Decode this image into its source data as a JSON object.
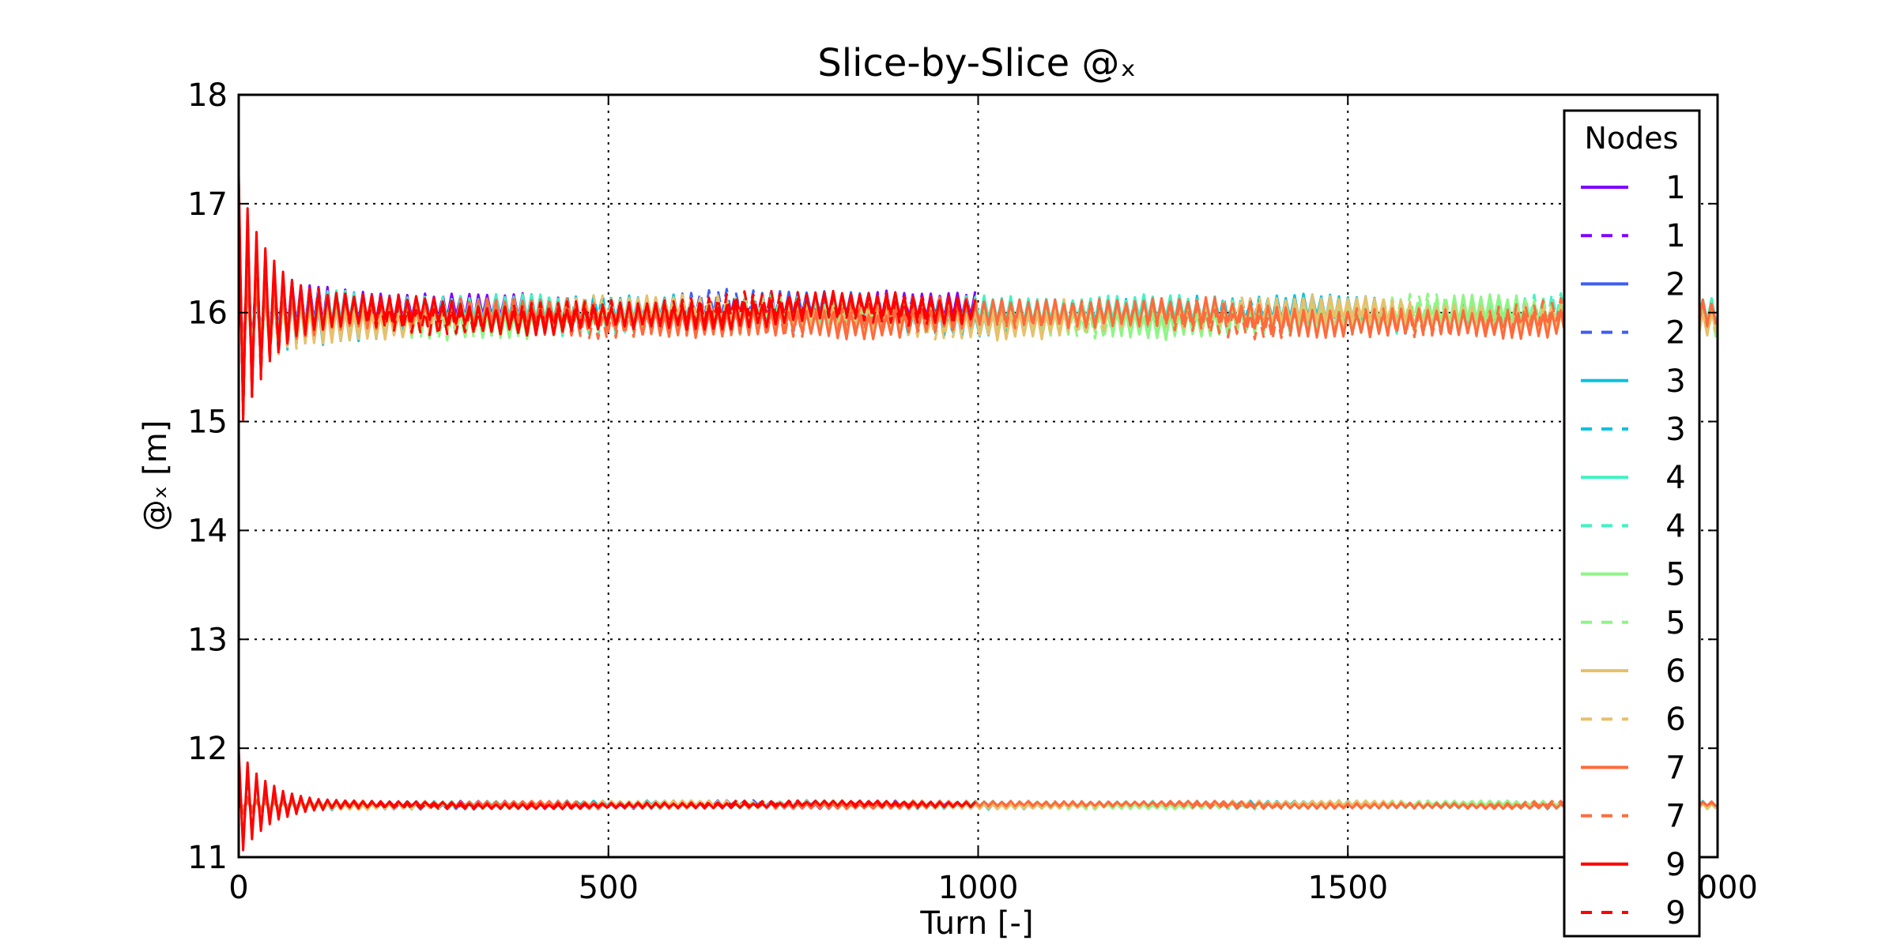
{
  "chart_data": {
    "type": "line",
    "title": "Slice-by-Slice @ₓ",
    "xlabel": "Turn [-]",
    "ylabel": "@ₓ [m]",
    "xlim": [
      0,
      2000
    ],
    "ylim": [
      11,
      18
    ],
    "xticks": [
      "0",
      "500",
      "1000",
      "1500",
      "2000"
    ],
    "yticks": [
      "11",
      "12",
      "13",
      "14",
      "15",
      "16",
      "17",
      "18"
    ],
    "grid": true,
    "legend": {
      "title": "Nodes",
      "placement": "right"
    },
    "series": [
      {
        "name": "1",
        "style": "solid",
        "color": "#7f00ff",
        "turn_range": [
          0,
          1000
        ],
        "upper_mean": 16.0,
        "lower_mean": 11.48
      },
      {
        "name": "1",
        "style": "dashed",
        "color": "#7f00ff",
        "turn_range": [
          0,
          1000
        ],
        "upper_mean": 16.0,
        "lower_mean": 11.48
      },
      {
        "name": "2",
        "style": "solid",
        "color": "#3f5ef3",
        "turn_range": [
          0,
          1000
        ],
        "upper_mean": 16.0,
        "lower_mean": 11.48
      },
      {
        "name": "2",
        "style": "dashed",
        "color": "#3f5ef3",
        "turn_range": [
          0,
          1000
        ],
        "upper_mean": 16.0,
        "lower_mean": 11.48
      },
      {
        "name": "3",
        "style": "solid",
        "color": "#00c3e0",
        "turn_range": [
          0,
          2000
        ],
        "upper_mean": 15.97,
        "lower_mean": 11.48
      },
      {
        "name": "3",
        "style": "dashed",
        "color": "#00c3e0",
        "turn_range": [
          0,
          2000
        ],
        "upper_mean": 15.97,
        "lower_mean": 11.48
      },
      {
        "name": "4",
        "style": "solid",
        "color": "#40f3c0",
        "turn_range": [
          0,
          2000
        ],
        "upper_mean": 15.98,
        "lower_mean": 11.48
      },
      {
        "name": "4",
        "style": "dashed",
        "color": "#40f3c0",
        "turn_range": [
          0,
          2000
        ],
        "upper_mean": 15.98,
        "lower_mean": 11.48
      },
      {
        "name": "5",
        "style": "solid",
        "color": "#8ef585",
        "turn_range": [
          0,
          2000
        ],
        "upper_mean": 15.96,
        "lower_mean": 11.48
      },
      {
        "name": "5",
        "style": "dashed",
        "color": "#8ef585",
        "turn_range": [
          0,
          2000
        ],
        "upper_mean": 15.96,
        "lower_mean": 11.48
      },
      {
        "name": "6",
        "style": "solid",
        "color": "#e8c06a",
        "turn_range": [
          0,
          2000
        ],
        "upper_mean": 15.96,
        "lower_mean": 11.48
      },
      {
        "name": "6",
        "style": "dashed",
        "color": "#e8c06a",
        "turn_range": [
          0,
          2000
        ],
        "upper_mean": 15.96,
        "lower_mean": 11.48
      },
      {
        "name": "7",
        "style": "solid",
        "color": "#ff6a3c",
        "turn_range": [
          0,
          2000
        ],
        "upper_mean": 15.95,
        "lower_mean": 11.48
      },
      {
        "name": "7",
        "style": "dashed",
        "color": "#ff6a3c",
        "turn_range": [
          0,
          2000
        ],
        "upper_mean": 15.95,
        "lower_mean": 11.48
      },
      {
        "name": "9",
        "style": "solid",
        "color": "#ff0000",
        "turn_range": [
          0,
          1000
        ],
        "upper_mean": 16.0,
        "lower_mean": 11.48,
        "start_upper": [
          17.3,
          15.1
        ],
        "start_lower": [
          12.0,
          11.05
        ]
      },
      {
        "name": "9",
        "style": "dashed",
        "color": "#ff0000",
        "turn_range": [
          0,
          1000
        ],
        "upper_mean": 16.0,
        "lower_mean": 11.48,
        "start_upper": [
          17.2,
          15.05
        ],
        "start_lower": [
          11.9,
          11.1
        ]
      }
    ]
  }
}
